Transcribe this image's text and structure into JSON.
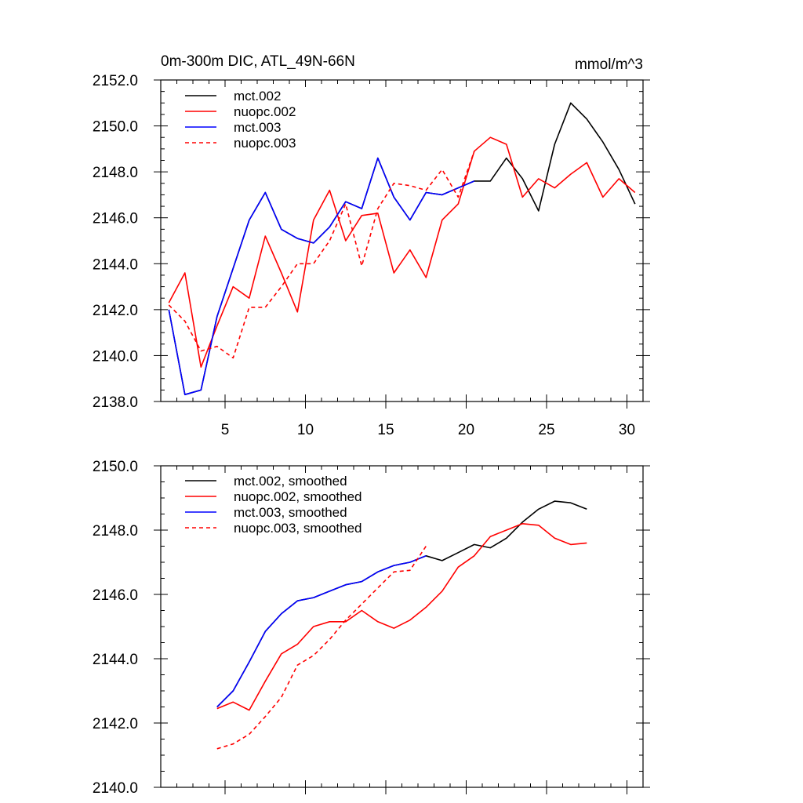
{
  "chart_data": [
    {
      "type": "line",
      "title": "0m-300m DIC, ATL_49N-66N",
      "units": "mmol/m^3",
      "xlabel": "",
      "ylabel": "",
      "xlim": [
        1,
        31
      ],
      "ylim": [
        2138,
        2152
      ],
      "x_ticks": [
        5,
        10,
        15,
        20,
        25,
        30
      ],
      "y_ticks": [
        2138,
        2140,
        2142,
        2144,
        2146,
        2148,
        2150,
        2152
      ],
      "y_tick_labels": [
        "2138.0",
        "2140.0",
        "2142.0",
        "2144.0",
        "2146.0",
        "2148.0",
        "2150.0",
        "2152.0"
      ],
      "legend_position": "top-left",
      "series": [
        {
          "name": "mct.002",
          "color": "#000000",
          "dash": "solid",
          "x": [
            1.5,
            2.5,
            3.5,
            4.5,
            5.5,
            6.5,
            7.5,
            8.5,
            9.5,
            10.5,
            11.5,
            12.5,
            13.5,
            14.5,
            15.5,
            16.5,
            17.5,
            18.5,
            19.5,
            20.5,
            21.5,
            22.5,
            23.5,
            24.5,
            25.5,
            26.5,
            27.5,
            28.5,
            29.5,
            30.5
          ],
          "values": [
            2142.0,
            2138.3,
            2138.5,
            2141.7,
            2143.8,
            2145.9,
            2147.1,
            2145.5,
            2145.1,
            2144.9,
            2145.6,
            2146.7,
            2146.4,
            2148.6,
            2146.9,
            2145.9,
            2147.1,
            2147.0,
            2147.3,
            2147.6,
            2147.6,
            2148.6,
            2147.7,
            2146.3,
            2149.2,
            2151.0,
            2150.3,
            2149.3,
            2148.1,
            2146.6
          ]
        },
        {
          "name": "nuopc.002",
          "color": "#ff0000",
          "dash": "solid",
          "x": [
            1.5,
            2.5,
            3.5,
            4.5,
            5.5,
            6.5,
            7.5,
            8.5,
            9.5,
            10.5,
            11.5,
            12.5,
            13.5,
            14.5,
            15.5,
            16.5,
            17.5,
            18.5,
            19.5,
            20.5,
            21.5,
            22.5,
            23.5,
            24.5,
            25.5,
            26.5,
            27.5,
            28.5,
            29.5,
            30.5
          ],
          "values": [
            2142.3,
            2143.6,
            2139.5,
            2141.3,
            2143.0,
            2142.5,
            2145.2,
            2143.6,
            2141.9,
            2145.9,
            2147.2,
            2145.0,
            2146.1,
            2146.2,
            2143.6,
            2144.6,
            2143.4,
            2145.9,
            2146.6,
            2148.9,
            2149.5,
            2149.2,
            2146.9,
            2147.7,
            2147.3,
            2147.9,
            2148.4,
            2146.9,
            2147.7,
            2147.1
          ]
        },
        {
          "name": "mct.003",
          "color": "#0000ff",
          "dash": "solid",
          "x": [
            1.5,
            2.5,
            3.5,
            4.5,
            5.5,
            6.5,
            7.5,
            8.5,
            9.5,
            10.5,
            11.5,
            12.5,
            13.5,
            14.5,
            15.5,
            16.5,
            17.5,
            18.5,
            19.5,
            20.5
          ],
          "values": [
            2142.0,
            2138.3,
            2138.5,
            2141.7,
            2143.8,
            2145.9,
            2147.1,
            2145.5,
            2145.1,
            2144.9,
            2145.6,
            2146.7,
            2146.4,
            2148.6,
            2146.9,
            2145.9,
            2147.1,
            2147.0,
            2147.3,
            2147.6
          ]
        },
        {
          "name": "nuopc.003",
          "color": "#ff0000",
          "dash": "dashed",
          "x": [
            1.5,
            2.5,
            3.5,
            4.5,
            5.5,
            6.5,
            7.5,
            8.5,
            9.5,
            10.5,
            11.5,
            12.5,
            13.5,
            14.5,
            15.5,
            16.5,
            17.5,
            18.5,
            19.5,
            20.5
          ],
          "values": [
            2142.2,
            2141.5,
            2140.2,
            2140.4,
            2139.9,
            2142.1,
            2142.1,
            2143.0,
            2144.0,
            2144.0,
            2145.0,
            2146.6,
            2143.9,
            2146.4,
            2147.5,
            2147.4,
            2147.2,
            2148.1,
            2146.9,
            2148.9
          ]
        }
      ]
    },
    {
      "type": "line",
      "title": "",
      "xlabel": "",
      "ylabel": "",
      "xlim": [
        1,
        31
      ],
      "ylim": [
        2140,
        2150
      ],
      "x_ticks": [
        5,
        10,
        15,
        20,
        25,
        30
      ],
      "y_ticks": [
        2140,
        2142,
        2144,
        2146,
        2148,
        2150
      ],
      "y_tick_labels": [
        "2140.0",
        "2142.0",
        "2144.0",
        "2146.0",
        "2148.0",
        "2150.0"
      ],
      "legend_position": "top-left",
      "series": [
        {
          "name": "mct.002, smoothed",
          "color": "#000000",
          "dash": "solid",
          "x": [
            4.5,
            5.5,
            6.5,
            7.5,
            8.5,
            9.5,
            10.5,
            11.5,
            12.5,
            13.5,
            14.5,
            15.5,
            16.5,
            17.5,
            18.5,
            19.5,
            20.5,
            21.5,
            22.5,
            23.5,
            24.5,
            25.5,
            26.5,
            27.5
          ],
          "values": [
            2142.5,
            2143.0,
            2143.9,
            2144.85,
            2145.4,
            2145.8,
            2145.9,
            2146.1,
            2146.3,
            2146.4,
            2146.7,
            2146.9,
            2147.0,
            2147.2,
            2147.05,
            2147.3,
            2147.55,
            2147.45,
            2147.75,
            2148.25,
            2148.65,
            2148.9,
            2148.85,
            2148.65
          ]
        },
        {
          "name": "nuopc.002, smoothed",
          "color": "#ff0000",
          "dash": "solid",
          "x": [
            4.5,
            5.5,
            6.5,
            7.5,
            8.5,
            9.5,
            10.5,
            11.5,
            12.5,
            13.5,
            14.5,
            15.5,
            16.5,
            17.5,
            18.5,
            19.5,
            20.5,
            21.5,
            22.5,
            23.5,
            24.5,
            25.5,
            26.5,
            27.5
          ],
          "values": [
            2142.45,
            2142.65,
            2142.4,
            2143.3,
            2144.15,
            2144.45,
            2145.0,
            2145.15,
            2145.15,
            2145.5,
            2145.15,
            2144.95,
            2145.2,
            2145.6,
            2146.1,
            2146.85,
            2147.2,
            2147.8,
            2148.0,
            2148.2,
            2148.15,
            2147.75,
            2147.55,
            2147.6
          ]
        },
        {
          "name": "mct.003, smoothed",
          "color": "#0000ff",
          "dash": "solid",
          "x": [
            4.5,
            5.5,
            6.5,
            7.5,
            8.5,
            9.5,
            10.5,
            11.5,
            12.5,
            13.5,
            14.5,
            15.5,
            16.5,
            17.5
          ],
          "values": [
            2142.5,
            2143.0,
            2143.9,
            2144.85,
            2145.4,
            2145.8,
            2145.9,
            2146.1,
            2146.3,
            2146.4,
            2146.7,
            2146.9,
            2147.0,
            2147.2
          ]
        },
        {
          "name": "nuopc.003, smoothed",
          "color": "#ff0000",
          "dash": "dashed",
          "x": [
            4.5,
            5.5,
            6.5,
            7.5,
            8.5,
            9.5,
            10.5,
            11.5,
            12.5,
            13.5,
            14.5,
            15.5,
            16.5,
            17.5
          ],
          "values": [
            2141.2,
            2141.35,
            2141.65,
            2142.2,
            2142.8,
            2143.8,
            2144.1,
            2144.6,
            2145.2,
            2145.7,
            2146.2,
            2146.7,
            2146.75,
            2147.5
          ]
        }
      ]
    }
  ]
}
